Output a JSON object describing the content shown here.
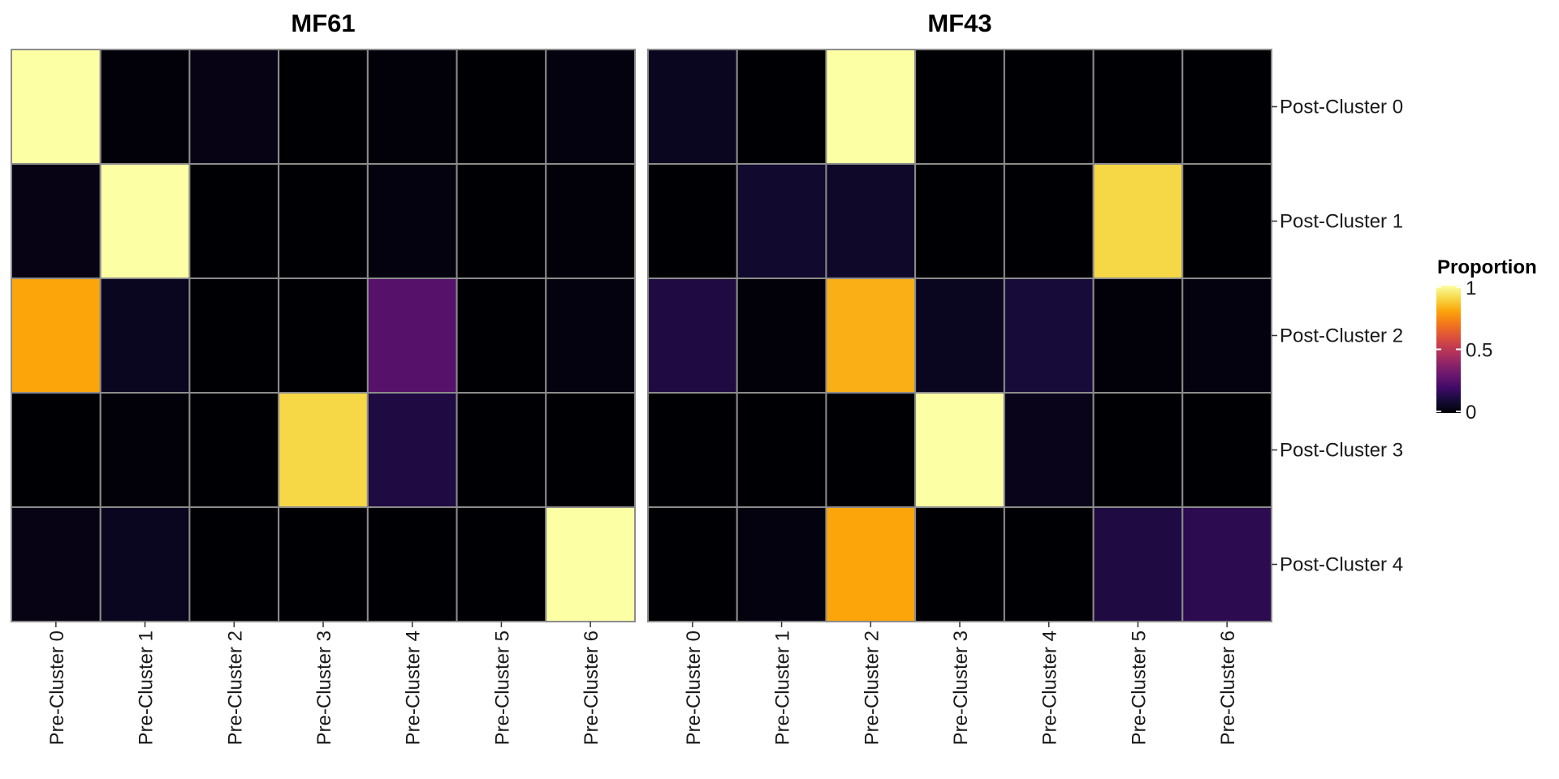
{
  "chart_data": {
    "type": "heatmap",
    "x_categories": [
      "Pre-Cluster 0",
      "Pre-Cluster 1",
      "Pre-Cluster 2",
      "Pre-Cluster 3",
      "Pre-Cluster 4",
      "Pre-Cluster 5",
      "Pre-Cluster 6"
    ],
    "y_categories": [
      "Post-Cluster 0",
      "Post-Cluster 1",
      "Post-Cluster 2",
      "Post-Cluster 3",
      "Post-Cluster 4"
    ],
    "panels": [
      {
        "title": "MF61",
        "values": [
          [
            1.0,
            0.01,
            0.03,
            0.0,
            0.01,
            0.0,
            0.02
          ],
          [
            0.03,
            1.0,
            0.0,
            0.0,
            0.02,
            0.0,
            0.01
          ],
          [
            0.8,
            0.05,
            0.0,
            0.0,
            0.25,
            0.0,
            0.02
          ],
          [
            0.0,
            0.01,
            0.0,
            0.9,
            0.12,
            0.0,
            0.0
          ],
          [
            0.03,
            0.05,
            0.0,
            0.0,
            0.0,
            0.0,
            1.0
          ]
        ]
      },
      {
        "title": "MF43",
        "values": [
          [
            0.05,
            0.0,
            1.0,
            0.0,
            0.0,
            0.0,
            0.0
          ],
          [
            0.0,
            0.08,
            0.07,
            0.0,
            0.0,
            0.9,
            0.0
          ],
          [
            0.12,
            0.01,
            0.82,
            0.05,
            0.1,
            0.01,
            0.02
          ],
          [
            0.0,
            0.0,
            0.0,
            1.0,
            0.04,
            0.0,
            0.0
          ],
          [
            0.0,
            0.02,
            0.8,
            0.0,
            0.0,
            0.12,
            0.15
          ]
        ]
      }
    ],
    "legend": {
      "title": "Proportion",
      "ticks": [
        0,
        0.5,
        1
      ],
      "tick_labels": [
        "0",
        "0.5",
        "1"
      ],
      "range": [
        0,
        1
      ],
      "colormap": "inferno",
      "position": "right"
    }
  }
}
